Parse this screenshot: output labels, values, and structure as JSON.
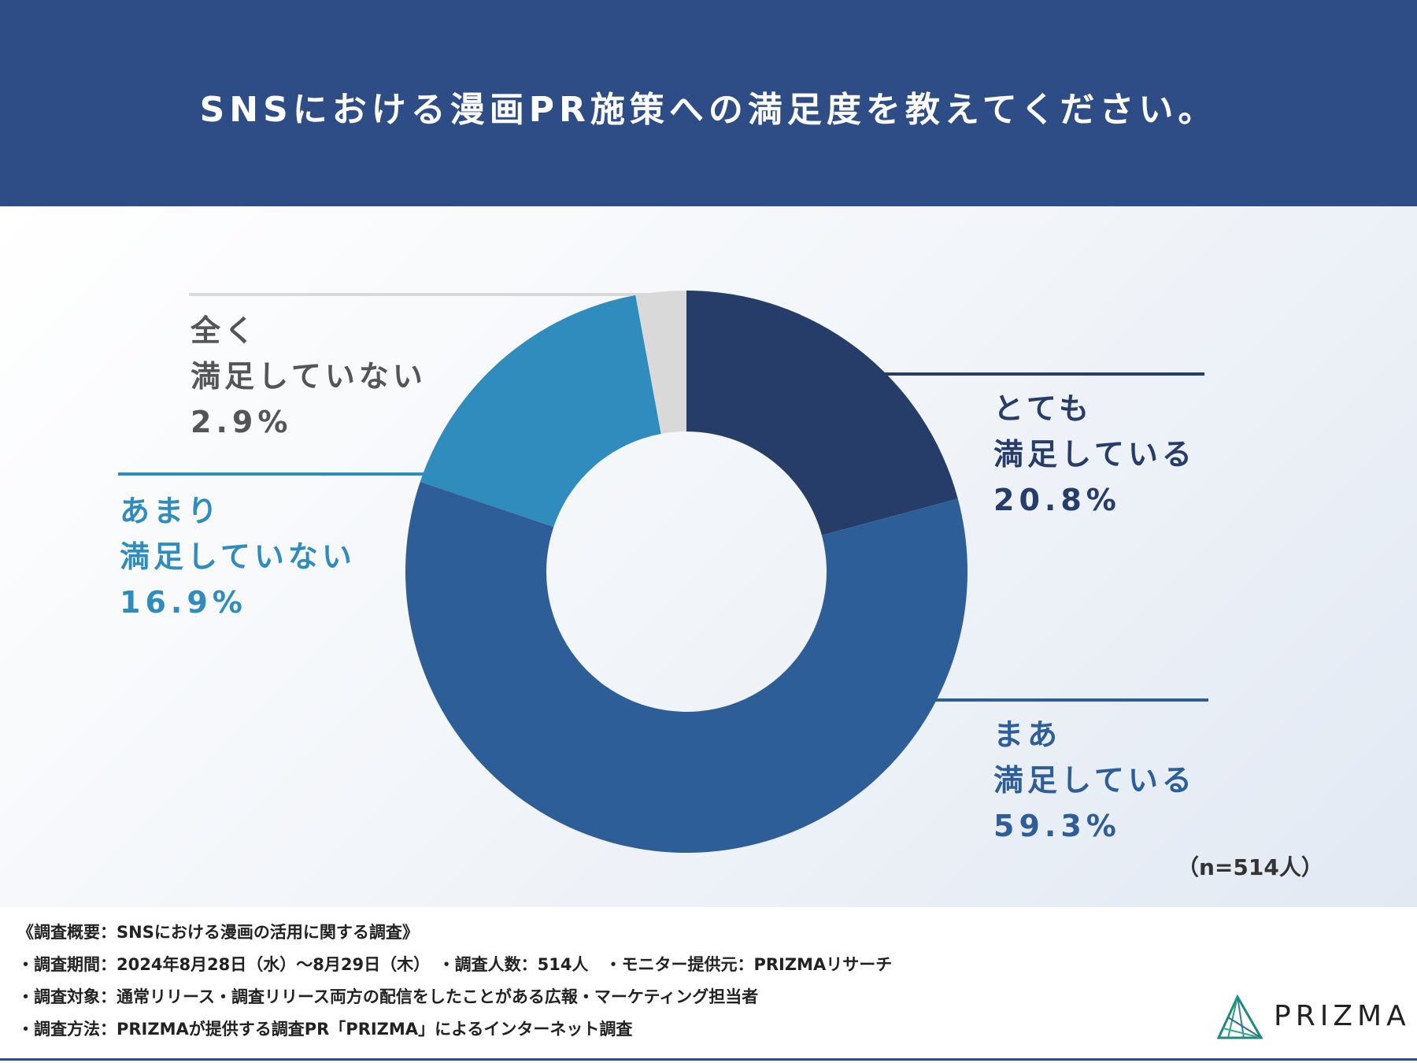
{
  "header": {
    "title": "SNSにおける漫画PR施策への満足度を教えてください。"
  },
  "chart_data": {
    "type": "pie",
    "donut": true,
    "categories": [
      "とても満足している",
      "まあ満足している",
      "あまり満足していない",
      "全く満足していない"
    ],
    "values": [
      20.8,
      59.3,
      16.9,
      2.9
    ],
    "colors": [
      "#263d69",
      "#2e5e98",
      "#2f8cbd",
      "#d9d9d9"
    ],
    "labels": [
      {
        "line1": "とても",
        "line2": "満足している",
        "pct": "20.8%",
        "color": "#263d69"
      },
      {
        "line1": "まあ",
        "line2": "満足している",
        "pct": "59.3%",
        "color": "#2e5e98"
      },
      {
        "line1": "あまり",
        "line2": "満足していない",
        "pct": "16.9%",
        "color": "#2f8cbd"
      },
      {
        "line1": "全く",
        "line2": "満足していない",
        "pct": "2.9%",
        "color": "#555555"
      }
    ],
    "n_note": "（n=514人）"
  },
  "footer": {
    "lines": [
      "《調査概要：SNSにおける漫画の活用に関する調査》",
      "・調査期間：2024年8月28日（水）〜8月29日（木）　・調査人数：514人　・モニター提供元：PRIZMAリサーチ",
      "・調査対象：通常リリース・調査リリース両方の配信をしたことがある広報・マーケティング担当者",
      "・調査方法：PRIZMAが提供する調査PR「PRIZMA」によるインターネット調査"
    ],
    "logo_text": "PRIZMA"
  }
}
